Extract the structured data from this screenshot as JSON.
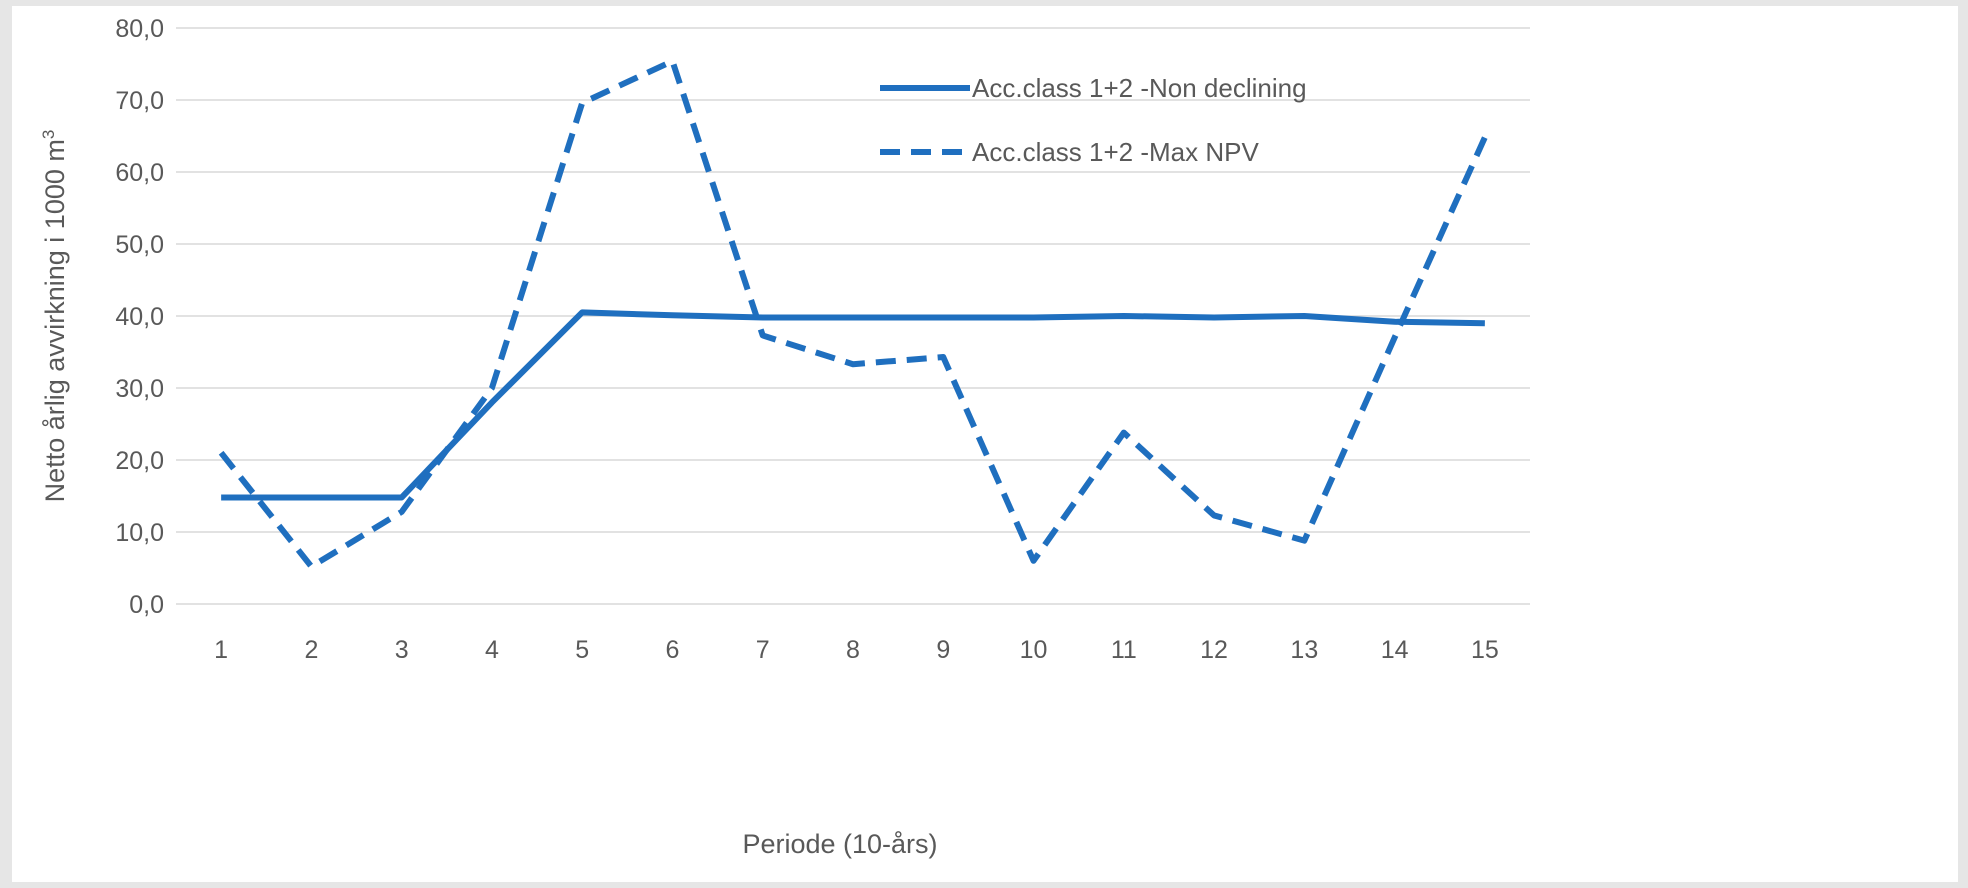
{
  "chart_data": {
    "type": "line",
    "title": "",
    "xlabel": "Periode (10-års)",
    "ylabel": "Netto årlig avvirkning i 1000 m",
    "ylabel_superscript": "3",
    "categories": [
      "1",
      "2",
      "3",
      "4",
      "5",
      "6",
      "7",
      "8",
      "9",
      "10",
      "11",
      "12",
      "13",
      "14",
      "15"
    ],
    "ylim": [
      0,
      80
    ],
    "yticks": [
      "0,0",
      "10,0",
      "20,0",
      "30,0",
      "40,0",
      "50,0",
      "60,0",
      "70,0",
      "80,0"
    ],
    "grid": true,
    "legend_position": "top-right",
    "series": [
      {
        "name": "Acc.class 1+2 -Non declining",
        "style": "solid",
        "color": "#1f6fbf",
        "values": [
          14.8,
          14.8,
          14.8,
          28.0,
          40.5,
          40.1,
          39.8,
          39.8,
          39.8,
          39.8,
          40.0,
          39.8,
          40.0,
          39.2,
          39.0
        ]
      },
      {
        "name": "Acc.class 1+2 -Max NPV",
        "style": "dashed",
        "color": "#1f6fbf",
        "values": [
          21.0,
          5.2,
          12.8,
          30.0,
          69.6,
          75.4,
          37.3,
          33.3,
          34.3,
          6.0,
          23.8,
          12.3,
          8.8,
          37.0,
          64.8
        ]
      }
    ]
  }
}
